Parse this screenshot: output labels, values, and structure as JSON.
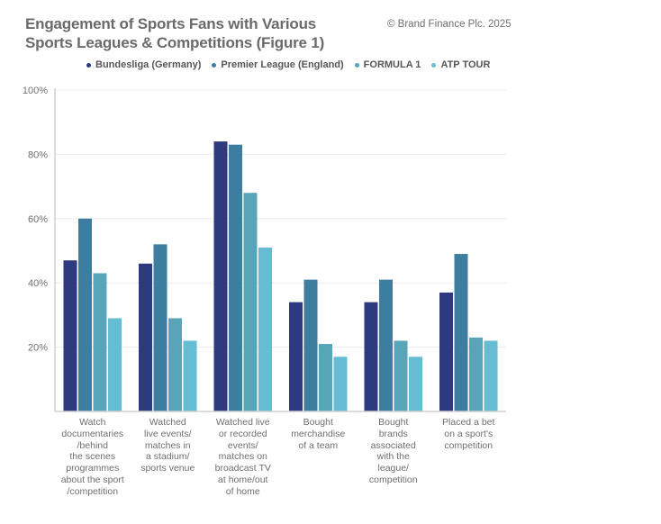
{
  "header": {
    "title": "Engagement of Sports Fans with Various Sports Leagues & Competitions (Figure 1)",
    "copyright": "© Brand Finance Plc. 2025"
  },
  "chart_data": {
    "type": "bar",
    "title": "Engagement of Sports Fans with Various Sports Leagues & Competitions (Figure 1)",
    "xlabel": "",
    "ylabel": "",
    "ylim": [
      0,
      100
    ],
    "yticks": [
      20,
      40,
      60,
      80,
      100
    ],
    "ytick_labels": [
      "20%",
      "40%",
      "60%",
      "80%",
      "100%"
    ],
    "grid": true,
    "legend_position": "top",
    "categories": [
      "Watch\ndocumentaries\n/behind\nthe scenes\nprogrammes\nabout the sport\n/competition",
      "Watched\nlive events/\nmatches in\na stadium/\nsports venue",
      "Watched live\nor recorded\nevents/\nmatches on\nbroadcast TV\nat home/out\nof home",
      "Bought\nmerchandise\nof a team",
      "Bought\nbrands\nassociated\nwith the\nleague/\ncompetition",
      "Placed a bet\non a sport's\ncompetition"
    ],
    "series": [
      {
        "name": "Bundesliga (Germany)",
        "color": "#2d3a80",
        "values": [
          47,
          46,
          84,
          34,
          34,
          37
        ]
      },
      {
        "name": "Premier League (England)",
        "color": "#3d7ea0",
        "values": [
          60,
          52,
          83,
          41,
          41,
          49
        ]
      },
      {
        "name": "FORMULA 1",
        "color": "#58a4b8",
        "values": [
          43,
          29,
          68,
          21,
          22,
          23
        ]
      },
      {
        "name": "ATP TOUR",
        "color": "#66bcd2",
        "values": [
          29,
          22,
          51,
          17,
          17,
          22
        ]
      }
    ]
  }
}
